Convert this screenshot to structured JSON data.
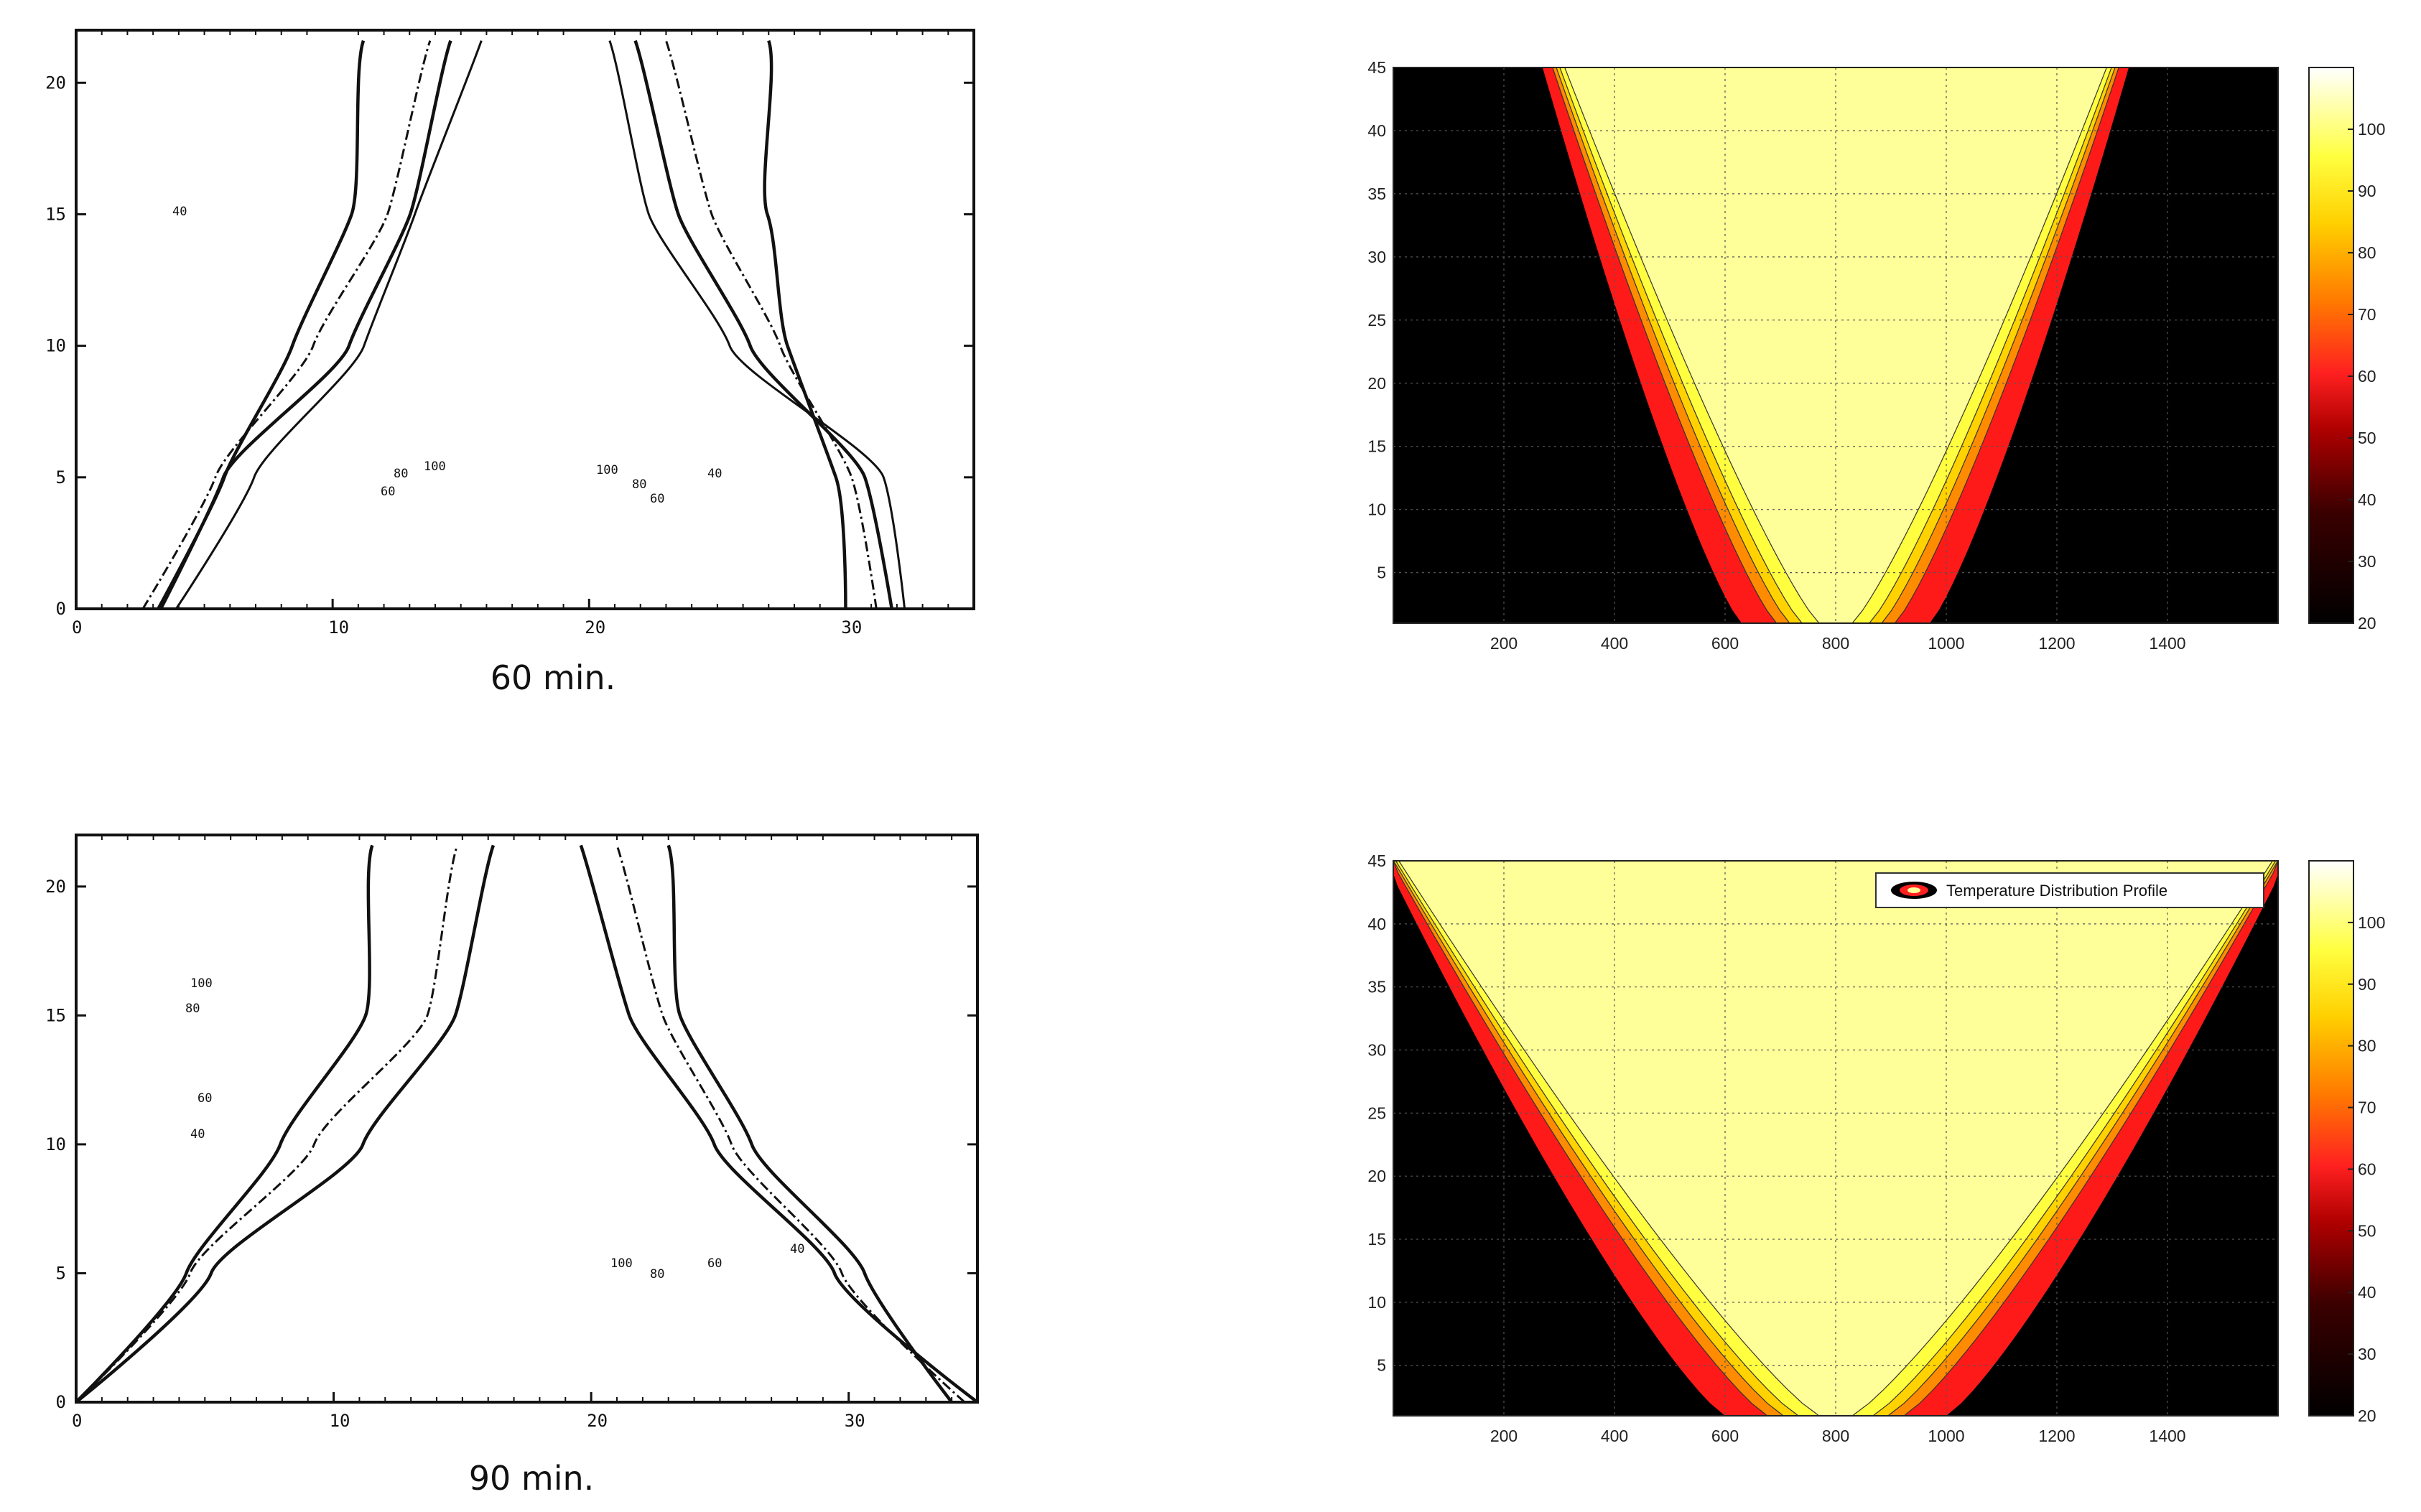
{
  "chart_data": [
    {
      "type": "line",
      "subtype": "contour",
      "caption": "60 min.",
      "xlim": [
        0,
        35
      ],
      "ylim": [
        0,
        22
      ],
      "x_ticks": [
        "0",
        "10",
        "20",
        "30"
      ],
      "y_ticks": [
        "0",
        "5",
        "10",
        "15",
        "20"
      ],
      "contour_labels": [
        "40",
        "60",
        "80",
        "100",
        "100",
        "80",
        "60",
        "40"
      ],
      "series": [
        {
          "values": {
            "left_x": [
              3.2,
              5.5,
              8.5,
              11.0,
              11.2
            ],
            "right_x": [
              30.0,
              29.5,
              28.0,
              27.0,
              27.0
            ]
          }
        },
        {
          "values": {
            "left_x": [
              2.6,
              5.5,
              9.5,
              12.0,
              13.8
            ],
            "right_x": [
              31.2,
              30.5,
              27.5,
              24.5,
              23.0
            ]
          }
        },
        {
          "values": {
            "left_x": [
              3.3,
              6.0,
              10.5,
              12.8,
              14.6
            ],
            "right_x": [
              31.8,
              30.8,
              26.0,
              23.5,
              21.8
            ]
          }
        },
        {
          "values": {
            "left_x": [
              3.9,
              6.8,
              11.0,
              13.4,
              15.8
            ],
            "right_x": [
              32.3,
              31.2,
              25.5,
              22.6,
              20.8
            ]
          }
        }
      ],
      "grid": false,
      "legend": "none"
    },
    {
      "type": "heatmap",
      "xlim": [
        0,
        1600
      ],
      "ylim": [
        1,
        45
      ],
      "x_ticks": [
        200,
        400,
        600,
        800,
        1000,
        1200,
        1400
      ],
      "y_ticks": [
        5,
        10,
        15,
        20,
        25,
        30,
        35,
        40,
        45
      ],
      "colorbar": {
        "range": [
          20,
          110
        ],
        "ticks": [
          20,
          30,
          40,
          50,
          60,
          70,
          80,
          90,
          100
        ]
      },
      "values": {
        "inner_x_at_bottom": 770,
        "inner_x_at_top": 310,
        "red_width_bottom": 140,
        "red_width_top": 40
      },
      "grid": true,
      "legend": "none"
    },
    {
      "type": "line",
      "subtype": "contour",
      "caption": "90 min.",
      "xlim": [
        0,
        35
      ],
      "ylim": [
        0,
        22
      ],
      "x_ticks": [
        "0",
        "10",
        "20",
        "30"
      ],
      "y_ticks": [
        "0",
        "5",
        "10",
        "15",
        "20"
      ],
      "contour_labels": [
        "100",
        "80",
        "60",
        "40",
        "100",
        "80",
        "60",
        "40"
      ],
      "series": [
        {
          "values": {
            "left_x": [
              0.0,
              4.0,
              8.0,
              11.5,
              11.5
            ],
            "right_x": [
              34.0,
              30.5,
              26.5,
              23.5,
              23.0
            ]
          }
        },
        {
          "values": {
            "left_x": [
              0.0,
              4.5,
              9.5,
              13.5,
              14.8
            ],
            "right_x": [
              34.5,
              30.0,
              25.5,
              22.5,
              21.0
            ]
          }
        },
        {
          "values": {
            "left_x": [
              0.0,
              5.5,
              11.0,
              14.5,
              16.2
            ],
            "right_x": [
              35.0,
              29.5,
              24.5,
              21.5,
              19.6
            ]
          }
        }
      ],
      "grid": false,
      "legend": "none"
    },
    {
      "type": "heatmap",
      "xlim": [
        0,
        1600
      ],
      "ylim": [
        1,
        45
      ],
      "x_ticks": [
        200,
        400,
        600,
        800,
        1000,
        1200,
        1400
      ],
      "y_ticks": [
        5,
        10,
        15,
        20,
        25,
        30,
        35,
        40,
        45
      ],
      "colorbar": {
        "range": [
          20,
          110
        ],
        "ticks": [
          20,
          30,
          40,
          50,
          60,
          70,
          80,
          90,
          100
        ]
      },
      "values": {
        "inner_x_at_bottom": 770,
        "inner_x_at_top": 10,
        "red_width_bottom": 170,
        "red_width_top": 25
      },
      "legend_text": "Temperature Distribution Profile",
      "grid": true,
      "legend": "top-right"
    }
  ],
  "palette": {
    "black": "#000000",
    "dark_red": "#5a0000",
    "red": "#ff1a1a",
    "orange": "#ff8c00",
    "yellow": "#ffee00",
    "pale_yellow": "#ffff99",
    "white": "#ffffff"
  }
}
